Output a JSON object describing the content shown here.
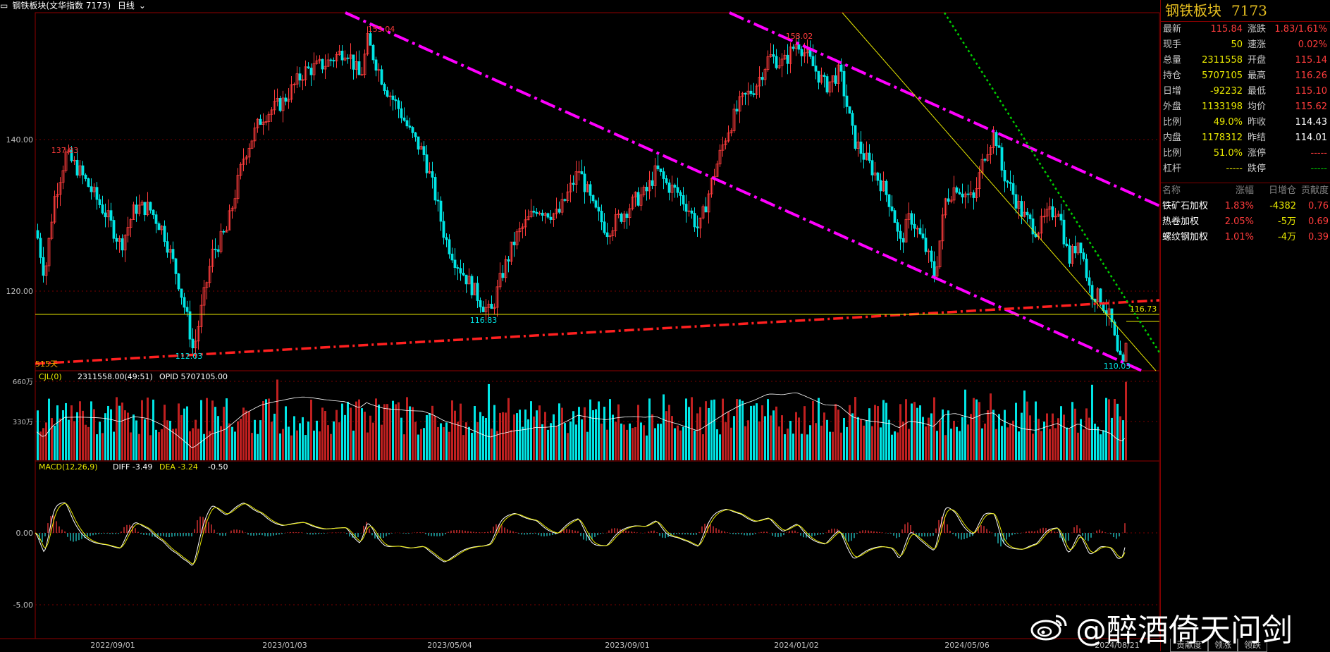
{
  "window": {
    "title": "钢铁板块(文华指数 7173)",
    "period": "日线",
    "menu_icon": "menu-icon",
    "period_icon": "chevron-down-icon"
  },
  "colors": {
    "up": "#ff3c3c",
    "down": "#00e5e5",
    "trend_pink": "#ff00ff",
    "trend_red": "#ff2020",
    "line_yellow": "#e8e800",
    "dotted_green": "#00d000",
    "frame": "#900000"
  },
  "price_chart": {
    "y_ticks": [
      "140.00",
      "120.00"
    ],
    "annotations": {
      "high_left": "153.04",
      "high_right": "153.02",
      "left_peak": "137.83",
      "low_1": "112.03",
      "low_2": "116.83",
      "low_3": "110.03",
      "level": "116.73",
      "days": "515天"
    }
  },
  "volume_chart": {
    "label": "CJL(0)",
    "readout": "2311558.00(49:51)",
    "opid": "OPID 5707105.00",
    "y_ticks": [
      "660万",
      "330万"
    ]
  },
  "macd_chart": {
    "label": "MACD(12,26,9)",
    "diff": "DIFF -3.49",
    "dea": "DEA -3.24",
    "macd": "-0.50",
    "y_ticks": [
      "0.00",
      "-5.00"
    ]
  },
  "x_axis": [
    "2022/09/01",
    "2023/01/03",
    "2023/05/04",
    "2023/09/01",
    "2024/01/02",
    "2024/05/06",
    "2024/08/21"
  ],
  "quote_panel": {
    "name": "钢铁板块",
    "code": "7173",
    "rows": [
      {
        "l1": "最新",
        "v1": "115.84",
        "c1": "#ff3c3c",
        "l2": "涨跌",
        "v2": "1.83/1.61%",
        "c2": "#ff3c3c"
      },
      {
        "l1": "现手",
        "v1": "50",
        "c1": "#e8e800",
        "l2": "速涨",
        "v2": "0.02%",
        "c2": "#ff3c3c"
      },
      {
        "l1": "总量",
        "v1": "2311558",
        "c1": "#e8e800",
        "l2": "开盘",
        "v2": "115.14",
        "c2": "#ff3c3c"
      },
      {
        "l1": "持仓",
        "v1": "5707105",
        "c1": "#e8e800",
        "l2": "最高",
        "v2": "116.26",
        "c2": "#ff3c3c"
      },
      {
        "l1": "日增",
        "v1": "-92232",
        "c1": "#e8e800",
        "l2": "最低",
        "v2": "115.10",
        "c2": "#ff3c3c"
      },
      {
        "l1": "外盘",
        "v1": "1133198",
        "c1": "#e8e800",
        "l2": "均价",
        "v2": "115.62",
        "c2": "#ff3c3c"
      },
      {
        "l1": "比例",
        "v1": "49.0%",
        "c1": "#e8e800",
        "l2": "昨收",
        "v2": "114.43",
        "c2": "#ffffff"
      },
      {
        "l1": "内盘",
        "v1": "1178312",
        "c1": "#e8e800",
        "l2": "昨结",
        "v2": "114.01",
        "c2": "#ffffff"
      },
      {
        "l1": "比例",
        "v1": "51.0%",
        "c1": "#e8e800",
        "l2": "涨停",
        "v2": "-----",
        "c2": "#ff3c3c"
      },
      {
        "l1": "杠杆",
        "v1": "-----",
        "c1": "#e8e800",
        "l2": "跌停",
        "v2": "-----",
        "c2": "#00d000"
      }
    ],
    "table_headers": [
      "名称",
      "涨幅",
      "日增仓",
      "贡献度"
    ],
    "table_rows": [
      {
        "name": "铁矿石加权",
        "chg": "1.83%",
        "oi": "-4382",
        "contrib": "0.76"
      },
      {
        "name": "热卷加权",
        "chg": "2.05%",
        "oi": "-5万",
        "contrib": "0.69"
      },
      {
        "name": "螺纹钢加权",
        "chg": "1.01%",
        "oi": "-4万",
        "contrib": "0.39"
      }
    ],
    "tabs": [
      "贡献度",
      "领涨",
      "领跌"
    ]
  },
  "watermark": {
    "icon": "weibo-icon",
    "text": "@醉酒倚天问剑"
  }
}
